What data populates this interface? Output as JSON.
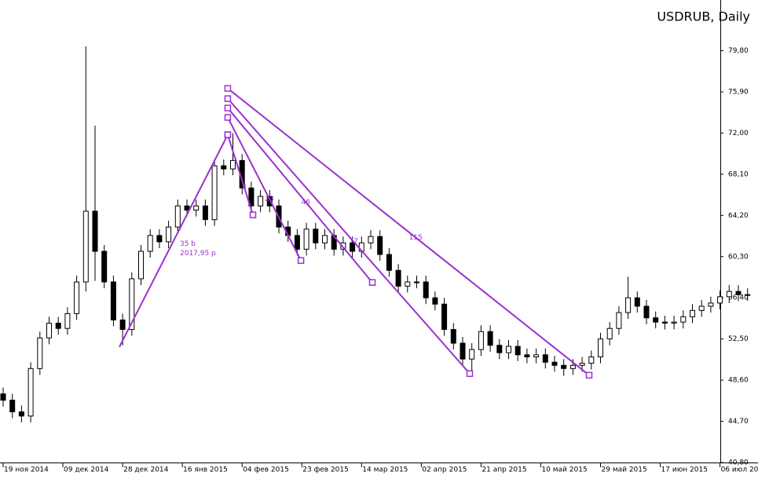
{
  "chart_data": {
    "type": "candlestick",
    "title": "USDRUB, Daily",
    "open": [
      47.3,
      46.7,
      45.6,
      45.2,
      49.7,
      52.6,
      54.0,
      53.5,
      54.9,
      57.9,
      64.6,
      60.8,
      57.9,
      54.3,
      53.4,
      58.2,
      60.8,
      62.3,
      61.7,
      63.1,
      65.1,
      64.7,
      65.1,
      63.8,
      68.9,
      68.6,
      69.4,
      66.8,
      65.1,
      66.0,
      65.1,
      63.1,
      62.3,
      61.0,
      62.9,
      61.6,
      62.3,
      61.0,
      61.6,
      60.8,
      61.6,
      62.2,
      60.5,
      59.0,
      57.5,
      57.9,
      57.9,
      56.4,
      55.8,
      53.4,
      52.1,
      50.6,
      51.5,
      53.2,
      51.9,
      51.2,
      51.8,
      51.0,
      50.8,
      51.0,
      50.3,
      50.0,
      49.7,
      50.0,
      50.2,
      50.8,
      52.5,
      53.5,
      55.0,
      56.4,
      55.6,
      54.5,
      54.1,
      54.0,
      54.1,
      54.6,
      55.2,
      55.6,
      55.9,
      56.5,
      57.0,
      56.7
    ],
    "high": [
      47.9,
      47.3,
      46.2,
      50.3,
      53.2,
      54.6,
      54.6,
      55.5,
      58.5,
      80.2,
      72.7,
      61.4,
      58.5,
      54.9,
      58.8,
      61.4,
      62.9,
      62.9,
      63.7,
      65.7,
      65.7,
      65.7,
      65.7,
      69.5,
      69.5,
      72.0,
      70.0,
      67.4,
      66.6,
      66.6,
      65.7,
      63.7,
      62.9,
      63.5,
      63.5,
      62.9,
      62.9,
      62.2,
      62.2,
      62.2,
      62.8,
      62.8,
      61.1,
      59.6,
      58.5,
      58.5,
      58.5,
      57.0,
      56.4,
      54.0,
      52.7,
      52.1,
      53.8,
      53.8,
      52.5,
      52.4,
      52.4,
      51.6,
      51.6,
      51.6,
      50.9,
      50.6,
      50.6,
      50.8,
      51.4,
      53.1,
      54.1,
      55.6,
      58.4,
      57.0,
      56.2,
      55.1,
      54.7,
      54.7,
      55.2,
      55.8,
      56.2,
      56.5,
      57.1,
      57.6,
      57.6,
      57.3
    ],
    "low": [
      46.1,
      45.0,
      44.6,
      44.6,
      49.1,
      52.0,
      52.9,
      52.9,
      54.3,
      57.0,
      58.0,
      57.3,
      53.7,
      51.9,
      52.8,
      57.6,
      60.2,
      61.1,
      61.1,
      62.5,
      64.1,
      64.1,
      63.2,
      63.2,
      68.0,
      68.0,
      66.2,
      64.5,
      64.5,
      64.5,
      62.5,
      61.7,
      60.4,
      60.4,
      61.0,
      61.0,
      60.4,
      60.4,
      60.2,
      60.2,
      61.0,
      59.9,
      58.4,
      56.9,
      56.9,
      57.3,
      55.8,
      55.2,
      52.8,
      51.5,
      50.0,
      49.3,
      50.9,
      51.3,
      50.6,
      50.6,
      50.4,
      50.2,
      50.2,
      49.7,
      49.4,
      49.0,
      49.1,
      49.4,
      49.6,
      50.2,
      51.9,
      52.9,
      54.4,
      55.0,
      53.9,
      53.5,
      53.4,
      53.4,
      53.5,
      54.0,
      54.6,
      55.0,
      55.3,
      55.9,
      56.1,
      56.1
    ],
    "close": [
      46.7,
      45.6,
      45.2,
      49.7,
      52.6,
      54.0,
      53.5,
      54.9,
      57.9,
      64.6,
      60.8,
      57.9,
      54.3,
      53.4,
      58.2,
      60.8,
      62.3,
      61.7,
      63.1,
      65.1,
      64.7,
      65.1,
      63.8,
      68.9,
      68.6,
      69.4,
      66.8,
      65.1,
      66.0,
      65.1,
      63.1,
      62.3,
      61.0,
      62.9,
      61.6,
      62.3,
      61.0,
      61.6,
      60.8,
      61.6,
      62.2,
      60.5,
      59.0,
      57.5,
      57.9,
      57.9,
      56.4,
      55.8,
      53.4,
      52.1,
      50.6,
      51.5,
      53.2,
      51.9,
      51.2,
      51.8,
      51.0,
      50.8,
      51.0,
      50.3,
      50.0,
      49.7,
      50.0,
      50.2,
      50.8,
      52.5,
      53.5,
      55.0,
      56.4,
      55.6,
      54.5,
      54.1,
      54.0,
      54.1,
      54.6,
      55.2,
      55.6,
      55.9,
      56.5,
      57.0,
      56.7,
      56.7
    ],
    "ylim": [
      40.8,
      84.6
    ],
    "yticks": [
      {
        "value": 79.8,
        "label": "79,80"
      },
      {
        "value": 75.9,
        "label": "75,90"
      },
      {
        "value": 72.0,
        "label": "72,00"
      },
      {
        "value": 68.1,
        "label": "68,10"
      },
      {
        "value": 64.2,
        "label": "64,20"
      },
      {
        "value": 60.3,
        "label": "60,30"
      },
      {
        "value": 56.4,
        "label": "56,40"
      },
      {
        "value": 52.5,
        "label": "52,50"
      },
      {
        "value": 48.6,
        "label": "48,60"
      },
      {
        "value": 44.7,
        "label": "44,70"
      },
      {
        "value": 40.8,
        "label": "40,80"
      }
    ],
    "xticks": [
      {
        "value": 0,
        "label": "19 ноя 2014"
      },
      {
        "value": 6.5,
        "label": "09 дек 2014"
      },
      {
        "value": 13,
        "label": "28 дек 2014"
      },
      {
        "value": 19.5,
        "label": "16 янв 2015"
      },
      {
        "value": 26,
        "label": "04 фев 2015"
      },
      {
        "value": 32.5,
        "label": "23 фев 2015"
      },
      {
        "value": 39,
        "label": "14 мар 2015"
      },
      {
        "value": 45.5,
        "label": "02 апр 2015"
      },
      {
        "value": 52,
        "label": "21 апр 2015"
      },
      {
        "value": 58.5,
        "label": "10 май 2015"
      },
      {
        "value": 65,
        "label": "29 май 2015"
      },
      {
        "value": 71.5,
        "label": "17 июн 2015"
      },
      {
        "value": 78,
        "label": "06 июл 20"
      }
    ],
    "annotation_color": "#9b30d0",
    "annotations": [
      {
        "from": [
          12.65,
          51.75
        ],
        "to": [
          24.44,
          71.84
        ],
        "labels": [
          "35 b",
          "2017,95 р"
        ]
      },
      {
        "from": [
          24.44,
          71.84
        ],
        "to": [
          27.18,
          64.25
        ],
        "labels": [
          "8"
        ]
      },
      {
        "from": [
          24.44,
          73.48
        ],
        "to": [
          32.4,
          59.93
        ],
        "labels": [
          "23"
        ]
      },
      {
        "from": [
          24.44,
          74.37
        ],
        "to": [
          40.17,
          57.85
        ],
        "labels": [
          "46"
        ]
      },
      {
        "from": [
          24.44,
          75.26
        ],
        "to": [
          50.77,
          49.22
        ],
        "labels": [
          "77"
        ]
      },
      {
        "from": [
          24.44,
          76.23
        ],
        "to": [
          63.76,
          49.07
        ],
        "labels": [
          "115"
        ]
      }
    ]
  }
}
